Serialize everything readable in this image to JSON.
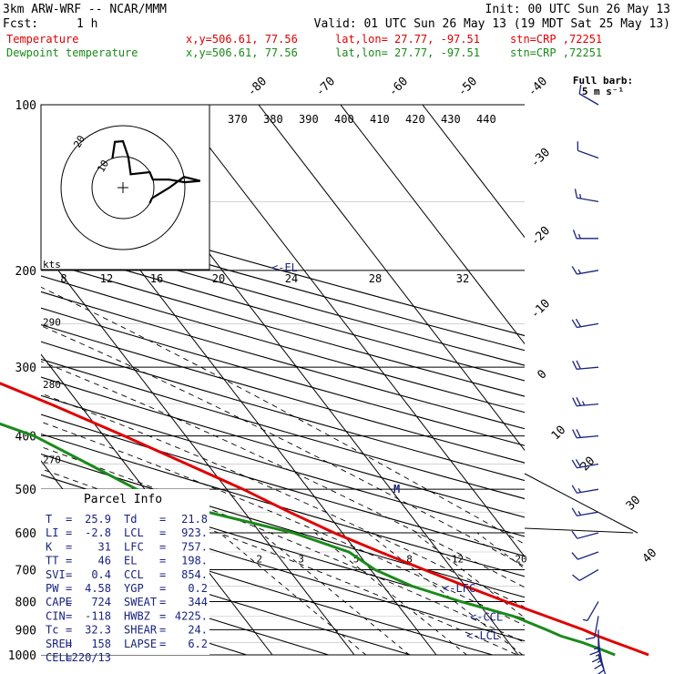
{
  "header": {
    "model": "3km ARW-WRF -- NCAR/MMM",
    "init": "Init: 00 UTC Sun 26 May 13",
    "fcst_label": "Fcst:",
    "fcst_value": "1 h",
    "valid": "Valid: 01 UTC Sun 26 May 13 (19 MDT Sat 25 May 13)"
  },
  "legend": [
    {
      "name": "Temperature",
      "color": "#e00000",
      "xy": "x,y=506.61, 77.56",
      "latlon": "lat,lon= 27.77, -97.51",
      "stn": "stn=CRP ,72251"
    },
    {
      "name": "Dewpoint temperature",
      "color": "#1a8a1a",
      "xy": "x,y=506.61, 77.56",
      "latlon": "lat,lon= 27.77, -97.51",
      "stn": "stn=CRP ,72251"
    }
  ],
  "wind_key": {
    "line1": "Full barb:",
    "line2": "5 m s⁻¹"
  },
  "hodograph": {
    "units": "kts",
    "ring_labels": [
      "10",
      "20"
    ],
    "speed_ticks": [
      "8",
      "12",
      "16",
      "20",
      "24",
      "28",
      "32"
    ]
  },
  "parcel_info": {
    "title": "Parcel Info",
    "rows": [
      [
        "T",
        "=",
        "25.9",
        "Td",
        "=",
        "21.8"
      ],
      [
        "LI",
        "=",
        "-2.8",
        "LCL",
        "=",
        "923."
      ],
      [
        "K",
        "=",
        "31",
        "LFC",
        "=",
        "757."
      ],
      [
        "TT",
        "=",
        "46",
        "EL",
        "=",
        "198."
      ],
      [
        "SVI",
        "=",
        "0.4",
        "CCL",
        "=",
        "854."
      ],
      [
        "PW",
        "=",
        "4.58",
        "YGP",
        "=",
        "0.2"
      ],
      [
        "CAPE",
        "=",
        "724",
        "SWEAT",
        "=",
        "344"
      ],
      [
        "CIN",
        "=",
        "-118",
        "HWBZ",
        "=",
        "4225."
      ],
      [
        "Tc",
        "=",
        "32.3",
        "SHEAR",
        "=",
        "24."
      ],
      [
        "SREH",
        "=",
        "158",
        "LAPSE",
        "=",
        "6.2"
      ],
      [
        "CELL",
        "=",
        "220/13",
        "",
        "",
        ""
      ]
    ]
  },
  "chart_data": {
    "type": "line",
    "diagram": "skew-T log-p",
    "pressure_levels": [
      100,
      200,
      300,
      400,
      500,
      600,
      700,
      800,
      900,
      1000
    ],
    "pressure_labels": [
      "100",
      "200",
      "300",
      "400",
      "500",
      "600",
      "700",
      "800",
      "900",
      "1000"
    ],
    "isotherm_labels": [
      {
        "t": -80,
        "text": "-80"
      },
      {
        "t": -70,
        "text": "-70"
      },
      {
        "t": -60,
        "text": "-60"
      },
      {
        "t": -50,
        "text": "-50"
      },
      {
        "t": -40,
        "text": "-40"
      },
      {
        "t": -30,
        "text": "-30"
      },
      {
        "t": -20,
        "text": "-20"
      },
      {
        "t": -10,
        "text": "-10"
      },
      {
        "t": 0,
        "text": "0"
      },
      {
        "t": 10,
        "text": "10"
      },
      {
        "t": 20,
        "text": "20"
      },
      {
        "t": 30,
        "text": "30"
      },
      {
        "t": 40,
        "text": "40"
      }
    ],
    "theta_e_labels": [
      "370",
      "380",
      "390",
      "400",
      "410",
      "420",
      "430",
      "440"
    ],
    "theta_labels": [
      "290",
      "280",
      "270"
    ],
    "mixing_ratio_labels": [
      "2",
      "3",
      "5",
      "8",
      "12",
      "20"
    ],
    "level_markers": [
      {
        "text": "<-EL",
        "p": 198
      },
      {
        "text": "<-LFC",
        "p": 757
      },
      {
        "text": "<-CCL",
        "p": 854
      },
      {
        "text": "<-LCL",
        "p": 923
      }
    ],
    "freezing_marker": {
      "text": "M",
      "p": 500
    },
    "series": [
      {
        "name": "Temperature",
        "color": "#e00000",
        "points": [
          {
            "p": 1000,
            "t": 25.9
          },
          {
            "p": 975,
            "t": 24.5
          },
          {
            "p": 950,
            "t": 23.0
          },
          {
            "p": 925,
            "t": 21.5
          },
          {
            "p": 900,
            "t": 20.3
          },
          {
            "p": 850,
            "t": 17.0
          },
          {
            "p": 800,
            "t": 13.5
          },
          {
            "p": 750,
            "t": 10.0
          },
          {
            "p": 700,
            "t": 6.5
          },
          {
            "p": 650,
            "t": 2.8
          },
          {
            "p": 600,
            "t": -1.0
          },
          {
            "p": 550,
            "t": -4.5
          },
          {
            "p": 500,
            "t": -8.0
          },
          {
            "p": 450,
            "t": -12.5
          },
          {
            "p": 400,
            "t": -17.5
          },
          {
            "p": 350,
            "t": -23.5
          },
          {
            "p": 300,
            "t": -31.0
          },
          {
            "p": 250,
            "t": -40.5
          },
          {
            "p": 200,
            "t": -52.0
          },
          {
            "p": 175,
            "t": -58.0
          },
          {
            "p": 150,
            "t": -62.5
          },
          {
            "p": 125,
            "t": -64.0
          },
          {
            "p": 110,
            "t": -64.5
          },
          {
            "p": 100,
            "t": -66.0
          }
        ]
      },
      {
        "name": "Dewpoint temperature",
        "color": "#1a8a1a",
        "points": [
          {
            "p": 1000,
            "t": 21.8
          },
          {
            "p": 975,
            "t": 20.5
          },
          {
            "p": 950,
            "t": 19.0
          },
          {
            "p": 925,
            "t": 17.0
          },
          {
            "p": 900,
            "t": 15.8
          },
          {
            "p": 850,
            "t": 13.0
          },
          {
            "p": 800,
            "t": 8.0
          },
          {
            "p": 750,
            "t": 3.5
          },
          {
            "p": 700,
            "t": 0.5
          },
          {
            "p": 650,
            "t": -1.0
          },
          {
            "p": 600,
            "t": -6.0
          },
          {
            "p": 550,
            "t": -14.5
          },
          {
            "p": 500,
            "t": -21.0
          },
          {
            "p": 450,
            "t": -24.5
          },
          {
            "p": 400,
            "t": -28.5
          },
          {
            "p": 350,
            "t": -36.5
          },
          {
            "p": 300,
            "t": -45.0
          },
          {
            "p": 250,
            "t": -56.0
          },
          {
            "p": 200,
            "t": -66.0
          },
          {
            "p": 175,
            "t": -75.0
          },
          {
            "p": 150,
            "t": -81.0
          },
          {
            "p": 125,
            "t": -80.0
          },
          {
            "p": 110,
            "t": -79.0
          },
          {
            "p": 100,
            "t": -78.0
          }
        ]
      }
    ],
    "wind_barbs": {
      "color": "#1a237e",
      "points": [
        {
          "p": 1000,
          "dir": 160,
          "spd": 10
        },
        {
          "p": 975,
          "dir": 165,
          "spd": 10
        },
        {
          "p": 950,
          "dir": 170,
          "spd": 15
        },
        {
          "p": 925,
          "dir": 175,
          "spd": 15
        },
        {
          "p": 900,
          "dir": 180,
          "spd": 15
        },
        {
          "p": 850,
          "dir": 190,
          "spd": 10
        },
        {
          "p": 800,
          "dir": 210,
          "spd": 5
        },
        {
          "p": 700,
          "dir": 240,
          "spd": 10
        },
        {
          "p": 650,
          "dir": 250,
          "spd": 10
        },
        {
          "p": 600,
          "dir": 255,
          "spd": 10
        },
        {
          "p": 550,
          "dir": 260,
          "spd": 15
        },
        {
          "p": 500,
          "dir": 260,
          "spd": 15
        },
        {
          "p": 450,
          "dir": 260,
          "spd": 20
        },
        {
          "p": 400,
          "dir": 265,
          "spd": 20
        },
        {
          "p": 350,
          "dir": 265,
          "spd": 25
        },
        {
          "p": 300,
          "dir": 265,
          "spd": 20
        },
        {
          "p": 250,
          "dir": 260,
          "spd": 20
        },
        {
          "p": 200,
          "dir": 260,
          "spd": 15
        },
        {
          "p": 175,
          "dir": 270,
          "spd": 15
        },
        {
          "p": 150,
          "dir": 280,
          "spd": 15
        },
        {
          "p": 125,
          "dir": 290,
          "spd": 10
        },
        {
          "p": 100,
          "dir": 300,
          "spd": 10
        }
      ]
    },
    "hodograph_trace": [
      {
        "dir": 160,
        "spd": 10
      },
      {
        "dir": 170,
        "spd": 15
      },
      {
        "dir": 180,
        "spd": 15
      },
      {
        "dir": 190,
        "spd": 10
      },
      {
        "dir": 210,
        "spd": 5
      },
      {
        "dir": 240,
        "spd": 10
      },
      {
        "dir": 255,
        "spd": 10
      },
      {
        "dir": 260,
        "spd": 15
      },
      {
        "dir": 265,
        "spd": 20
      },
      {
        "dir": 265,
        "spd": 25
      },
      {
        "dir": 260,
        "spd": 20
      },
      {
        "dir": 270,
        "spd": 15
      },
      {
        "dir": 290,
        "spd": 10
      },
      {
        "dir": 300,
        "spd": 10
      }
    ]
  }
}
